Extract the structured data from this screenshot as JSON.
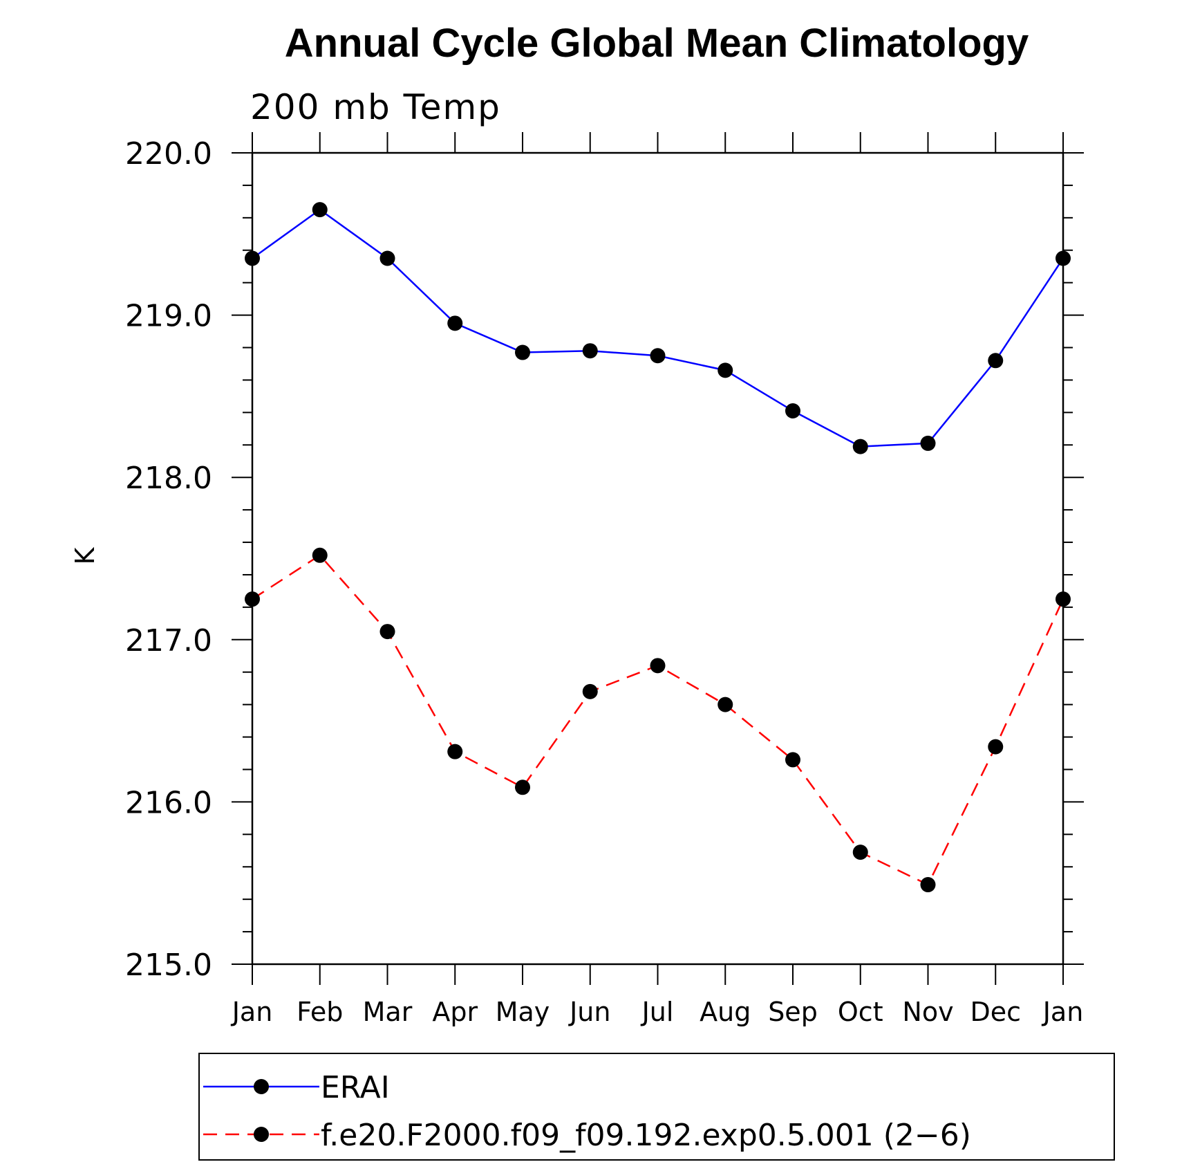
{
  "chart_data": {
    "type": "line",
    "title": "Annual Cycle Global Mean Climatology",
    "subtitle": "200 mb Temp",
    "xlabel": "",
    "ylabel": "K",
    "categories": [
      "Jan",
      "Feb",
      "Mar",
      "Apr",
      "May",
      "Jun",
      "Jul",
      "Aug",
      "Sep",
      "Oct",
      "Nov",
      "Dec",
      "Jan"
    ],
    "ylim": [
      215.0,
      220.0
    ],
    "yticks": [
      "215.0",
      "216.0",
      "217.0",
      "218.0",
      "219.0",
      "220.0"
    ],
    "grid": false,
    "legend_position": "bottom",
    "series": [
      {
        "name": "ERAI",
        "color": "#0000ff",
        "style": "solid",
        "marker": "filled-circle",
        "values": [
          219.35,
          219.65,
          219.35,
          218.95,
          218.77,
          218.78,
          218.75,
          218.66,
          218.41,
          218.19,
          218.21,
          218.72,
          219.35
        ]
      },
      {
        "name": "f.e20.F2000.f09_f09.192.exp0.5.001 (2−6)",
        "color": "#ff0000",
        "style": "dashed",
        "marker": "filled-circle",
        "values": [
          217.25,
          217.52,
          217.05,
          216.31,
          216.09,
          216.68,
          216.84,
          216.6,
          216.26,
          215.69,
          215.49,
          216.34,
          217.25
        ]
      }
    ]
  }
}
